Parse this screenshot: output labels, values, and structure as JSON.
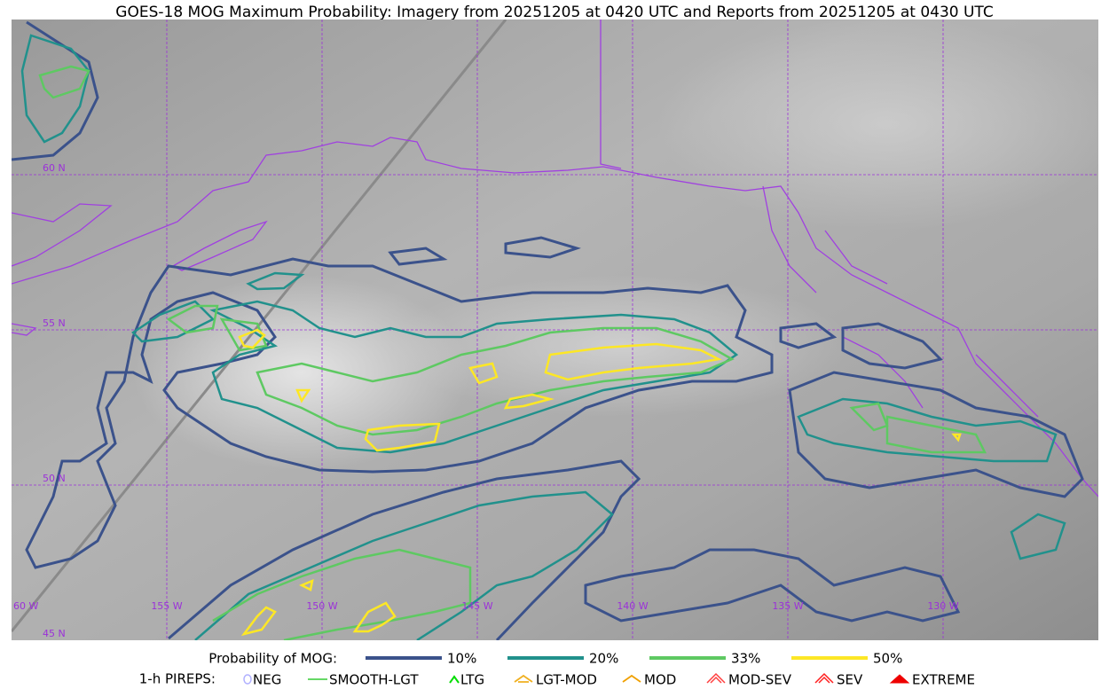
{
  "header": {
    "title": "GOES-18 MOG Maximum Probability: Imagery from 20251205 at 0420 UTC and Reports from 20251205 at 0430 UTC"
  },
  "map": {
    "lat_labels": [
      "60 N",
      "55 N",
      "50 N",
      "45 N"
    ],
    "lon_labels": [
      "60 W",
      "155 W",
      "150 W",
      "145 W",
      "140 W",
      "135 W",
      "130 W"
    ],
    "grid_color": "#9b30d9"
  },
  "legend": {
    "probability_title": "Probability of MOG:",
    "probability_items": [
      {
        "label": "10%",
        "color": "#3b528b"
      },
      {
        "label": "20%",
        "color": "#21918c"
      },
      {
        "label": "33%",
        "color": "#5ec962"
      },
      {
        "label": "50%",
        "color": "#fde725"
      }
    ],
    "pirep_title": "1-h PIREPS:",
    "pirep_items": [
      {
        "label": "NEG",
        "color": "#b0b0ff"
      },
      {
        "label": "SMOOTH-LGT",
        "color": "#33cc33"
      },
      {
        "label": "LTG",
        "color": "#00dd00"
      },
      {
        "label": "LGT-MOD",
        "color": "#f0b020"
      },
      {
        "label": "MOD",
        "color": "#f0a000"
      },
      {
        "label": "MOD-SEV",
        "color": "#ff4040"
      },
      {
        "label": "SEV",
        "color": "#ff2020"
      },
      {
        "label": "EXTREME",
        "color": "#ee0000"
      }
    ]
  }
}
